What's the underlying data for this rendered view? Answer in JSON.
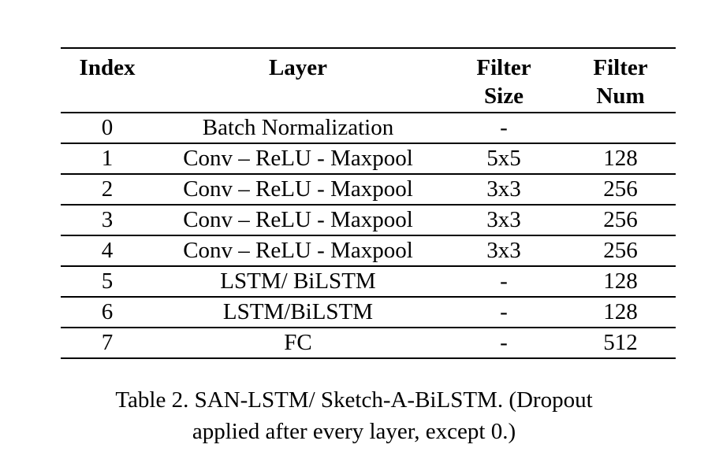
{
  "table": {
    "headers": {
      "index": "Index",
      "layer": "Layer",
      "filter_size": [
        "Filter",
        "Size"
      ],
      "filter_num": [
        "Filter",
        "Num"
      ]
    },
    "rows": [
      {
        "index": "0",
        "layer": "Batch Normalization",
        "filter_size": "-",
        "filter_num": ""
      },
      {
        "index": "1",
        "layer": "Conv – ReLU - Maxpool",
        "filter_size": "5x5",
        "filter_num": "128"
      },
      {
        "index": "2",
        "layer": "Conv – ReLU - Maxpool",
        "filter_size": "3x3",
        "filter_num": "256"
      },
      {
        "index": "3",
        "layer": "Conv – ReLU - Maxpool",
        "filter_size": "3x3",
        "filter_num": "256"
      },
      {
        "index": "4",
        "layer": "Conv – ReLU - Maxpool",
        "filter_size": "3x3",
        "filter_num": "256"
      },
      {
        "index": "5",
        "layer": "LSTM/ BiLSTM",
        "filter_size": "-",
        "filter_num": "128"
      },
      {
        "index": "6",
        "layer": "LSTM/BiLSTM",
        "filter_size": "-",
        "filter_num": "128"
      },
      {
        "index": "7",
        "layer": "FC",
        "filter_size": "-",
        "filter_num": "512"
      }
    ]
  },
  "caption": {
    "line1": "Table 2. SAN-LSTM/ Sketch-A-BiLSTM. (Dropout",
    "line2": "applied after every layer, except 0.)"
  }
}
